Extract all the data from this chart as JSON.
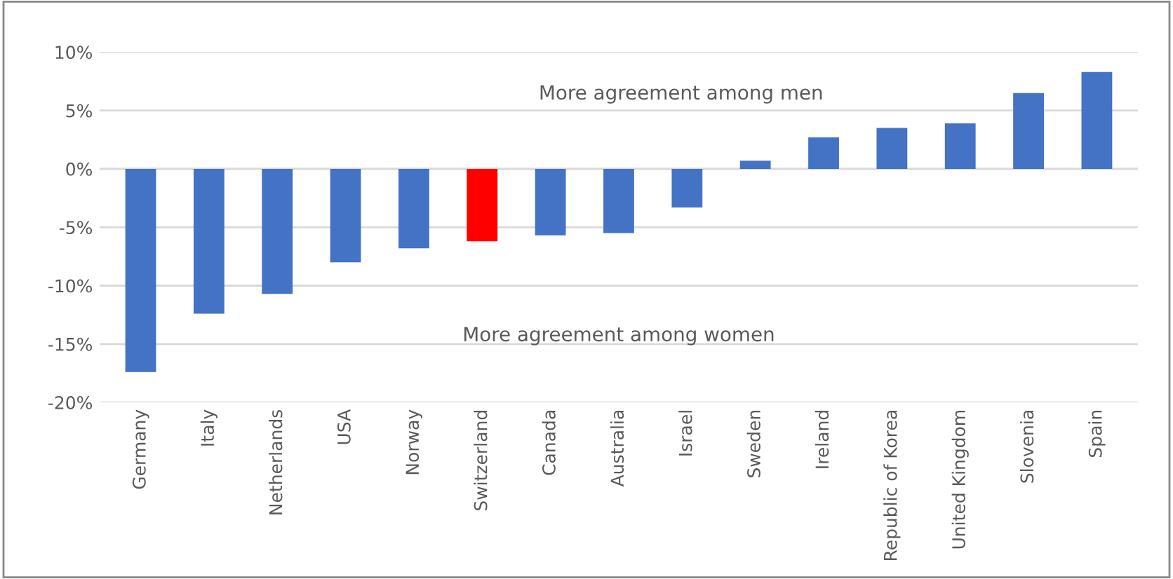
{
  "chart_data": {
    "type": "bar",
    "categories": [
      "Germany",
      "Italy",
      "Netherlands",
      "USA",
      "Norway",
      "Switzerland",
      "Canada",
      "Australia",
      "Israel",
      "Sweden",
      "Ireland",
      "Republic of Korea",
      "United Kingdom",
      "Slovenia",
      "Spain"
    ],
    "values": [
      -17.4,
      -12.4,
      -10.7,
      -8.0,
      -6.8,
      -6.2,
      -5.7,
      -5.5,
      -3.3,
      0.7,
      2.7,
      3.5,
      3.9,
      6.5,
      8.3
    ],
    "colors": [
      "#4472c4",
      "#4472c4",
      "#4472c4",
      "#4472c4",
      "#4472c4",
      "#ff0000",
      "#4472c4",
      "#4472c4",
      "#4472c4",
      "#4472c4",
      "#4472c4",
      "#4472c4",
      "#4472c4",
      "#4472c4",
      "#4472c4"
    ],
    "ylim": [
      -20,
      10
    ],
    "yticks": [
      {
        "value": -20,
        "label": "-20%"
      },
      {
        "value": -15,
        "label": "-15%"
      },
      {
        "value": -10,
        "label": "-10%"
      },
      {
        "value": -5,
        "label": "-5%"
      },
      {
        "value": 0,
        "label": "0%"
      },
      {
        "value": 5,
        "label": "5%"
      },
      {
        "value": 10,
        "label": "10%"
      }
    ],
    "grid": "y",
    "annotations": [
      "More agreement among men",
      "More agreement among women"
    ]
  }
}
